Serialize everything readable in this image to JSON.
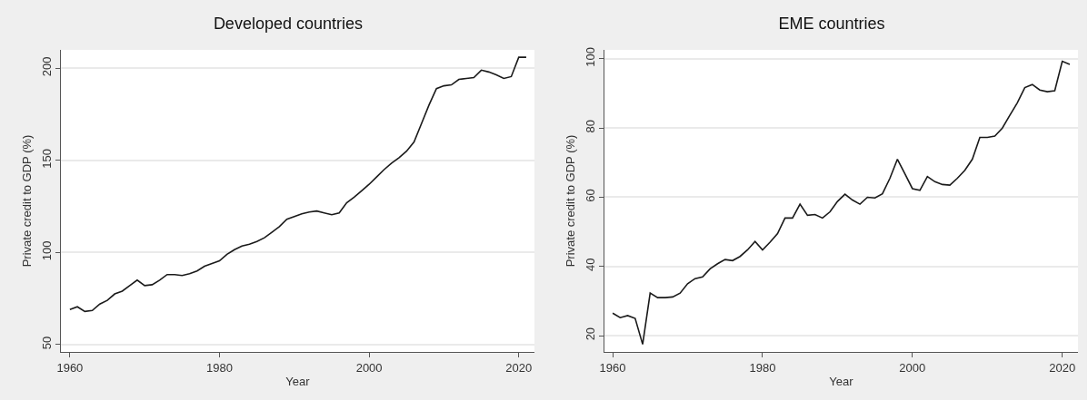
{
  "chart_data": [
    {
      "type": "line",
      "title": "Developed countries",
      "xlabel": "Year",
      "ylabel": "Private credit to GDP (%)",
      "x": [
        1960,
        1961,
        1962,
        1963,
        1964,
        1965,
        1966,
        1967,
        1968,
        1969,
        1970,
        1971,
        1972,
        1973,
        1974,
        1975,
        1976,
        1977,
        1978,
        1979,
        1980,
        1981,
        1982,
        1983,
        1984,
        1985,
        1986,
        1987,
        1988,
        1989,
        1990,
        1991,
        1992,
        1993,
        1994,
        1995,
        1996,
        1997,
        1998,
        1999,
        2000,
        2001,
        2002,
        2003,
        2004,
        2005,
        2006,
        2007,
        2008,
        2009,
        2010,
        2011,
        2012,
        2013,
        2014,
        2015,
        2016,
        2017,
        2018,
        2019,
        2020,
        2021
      ],
      "series": [
        {
          "color": "#1a1a1a",
          "values": [
            69,
            70.5,
            68,
            68.5,
            72,
            74,
            77.5,
            79,
            82,
            85,
            82,
            82.5,
            85,
            88,
            88,
            87.5,
            88.5,
            90,
            92.5,
            94,
            95.5,
            99,
            101.5,
            103.5,
            104.5,
            106,
            108,
            111,
            114,
            118,
            119.5,
            121,
            122,
            122.5,
            121.5,
            120.5,
            121.5,
            127,
            130,
            133.5,
            137,
            141,
            145,
            148.5,
            151.5,
            155,
            160,
            170,
            180,
            189,
            190.5,
            191,
            194,
            194.5,
            195,
            199,
            198,
            196.5,
            194.5,
            195.5,
            206,
            206
          ]
        }
      ],
      "xlim": [
        1958.8,
        2022.1
      ],
      "xticks": [
        1960,
        1980,
        2000,
        2020
      ],
      "ylim": [
        46,
        210
      ],
      "yticks": [
        50,
        100,
        150,
        200
      ],
      "grid": "y",
      "marker": "none",
      "line_style": "solid"
    },
    {
      "type": "line",
      "title": "EME countries",
      "xlabel": "Year",
      "ylabel": "Private credit to GDP (%)",
      "x": [
        1960,
        1961,
        1962,
        1963,
        1964,
        1965,
        1966,
        1967,
        1968,
        1969,
        1970,
        1971,
        1972,
        1973,
        1974,
        1975,
        1976,
        1977,
        1978,
        1979,
        1980,
        1981,
        1982,
        1983,
        1984,
        1985,
        1986,
        1987,
        1988,
        1989,
        1990,
        1991,
        1992,
        1993,
        1994,
        1995,
        1996,
        1997,
        1998,
        1999,
        2000,
        2001,
        2002,
        2003,
        2004,
        2005,
        2006,
        2007,
        2008,
        2009,
        2010,
        2011,
        2012,
        2013,
        2014,
        2015,
        2016,
        2017,
        2018,
        2019,
        2020,
        2021
      ],
      "series": [
        {
          "color": "#1a1a1a",
          "values": [
            26.5,
            25.2,
            25.8,
            25,
            17.5,
            32.3,
            31,
            31,
            31.2,
            32.3,
            35,
            36.5,
            37,
            39.3,
            40.8,
            42,
            41.7,
            42.9,
            44.8,
            47.2,
            44.8,
            47,
            49.5,
            54,
            54,
            58,
            54.8,
            55,
            54,
            55.8,
            58.8,
            60.9,
            59.2,
            58,
            60,
            59.8,
            61,
            65.5,
            71,
            66.8,
            62.5,
            62,
            66,
            64.5,
            63.7,
            63.5,
            65.5,
            67.8,
            71,
            77.3,
            77.3,
            77.7,
            80,
            83.7,
            87.3,
            91.7,
            92.6,
            91,
            90.5,
            90.8,
            99.3,
            98.4
          ]
        }
      ],
      "xlim": [
        1958.9,
        2022.1
      ],
      "xticks": [
        1960,
        1980,
        2000,
        2020
      ],
      "ylim": [
        15.3,
        102.6
      ],
      "yticks": [
        20,
        40,
        60,
        80,
        100
      ],
      "grid": "y",
      "marker": "none",
      "line_style": "solid"
    }
  ]
}
